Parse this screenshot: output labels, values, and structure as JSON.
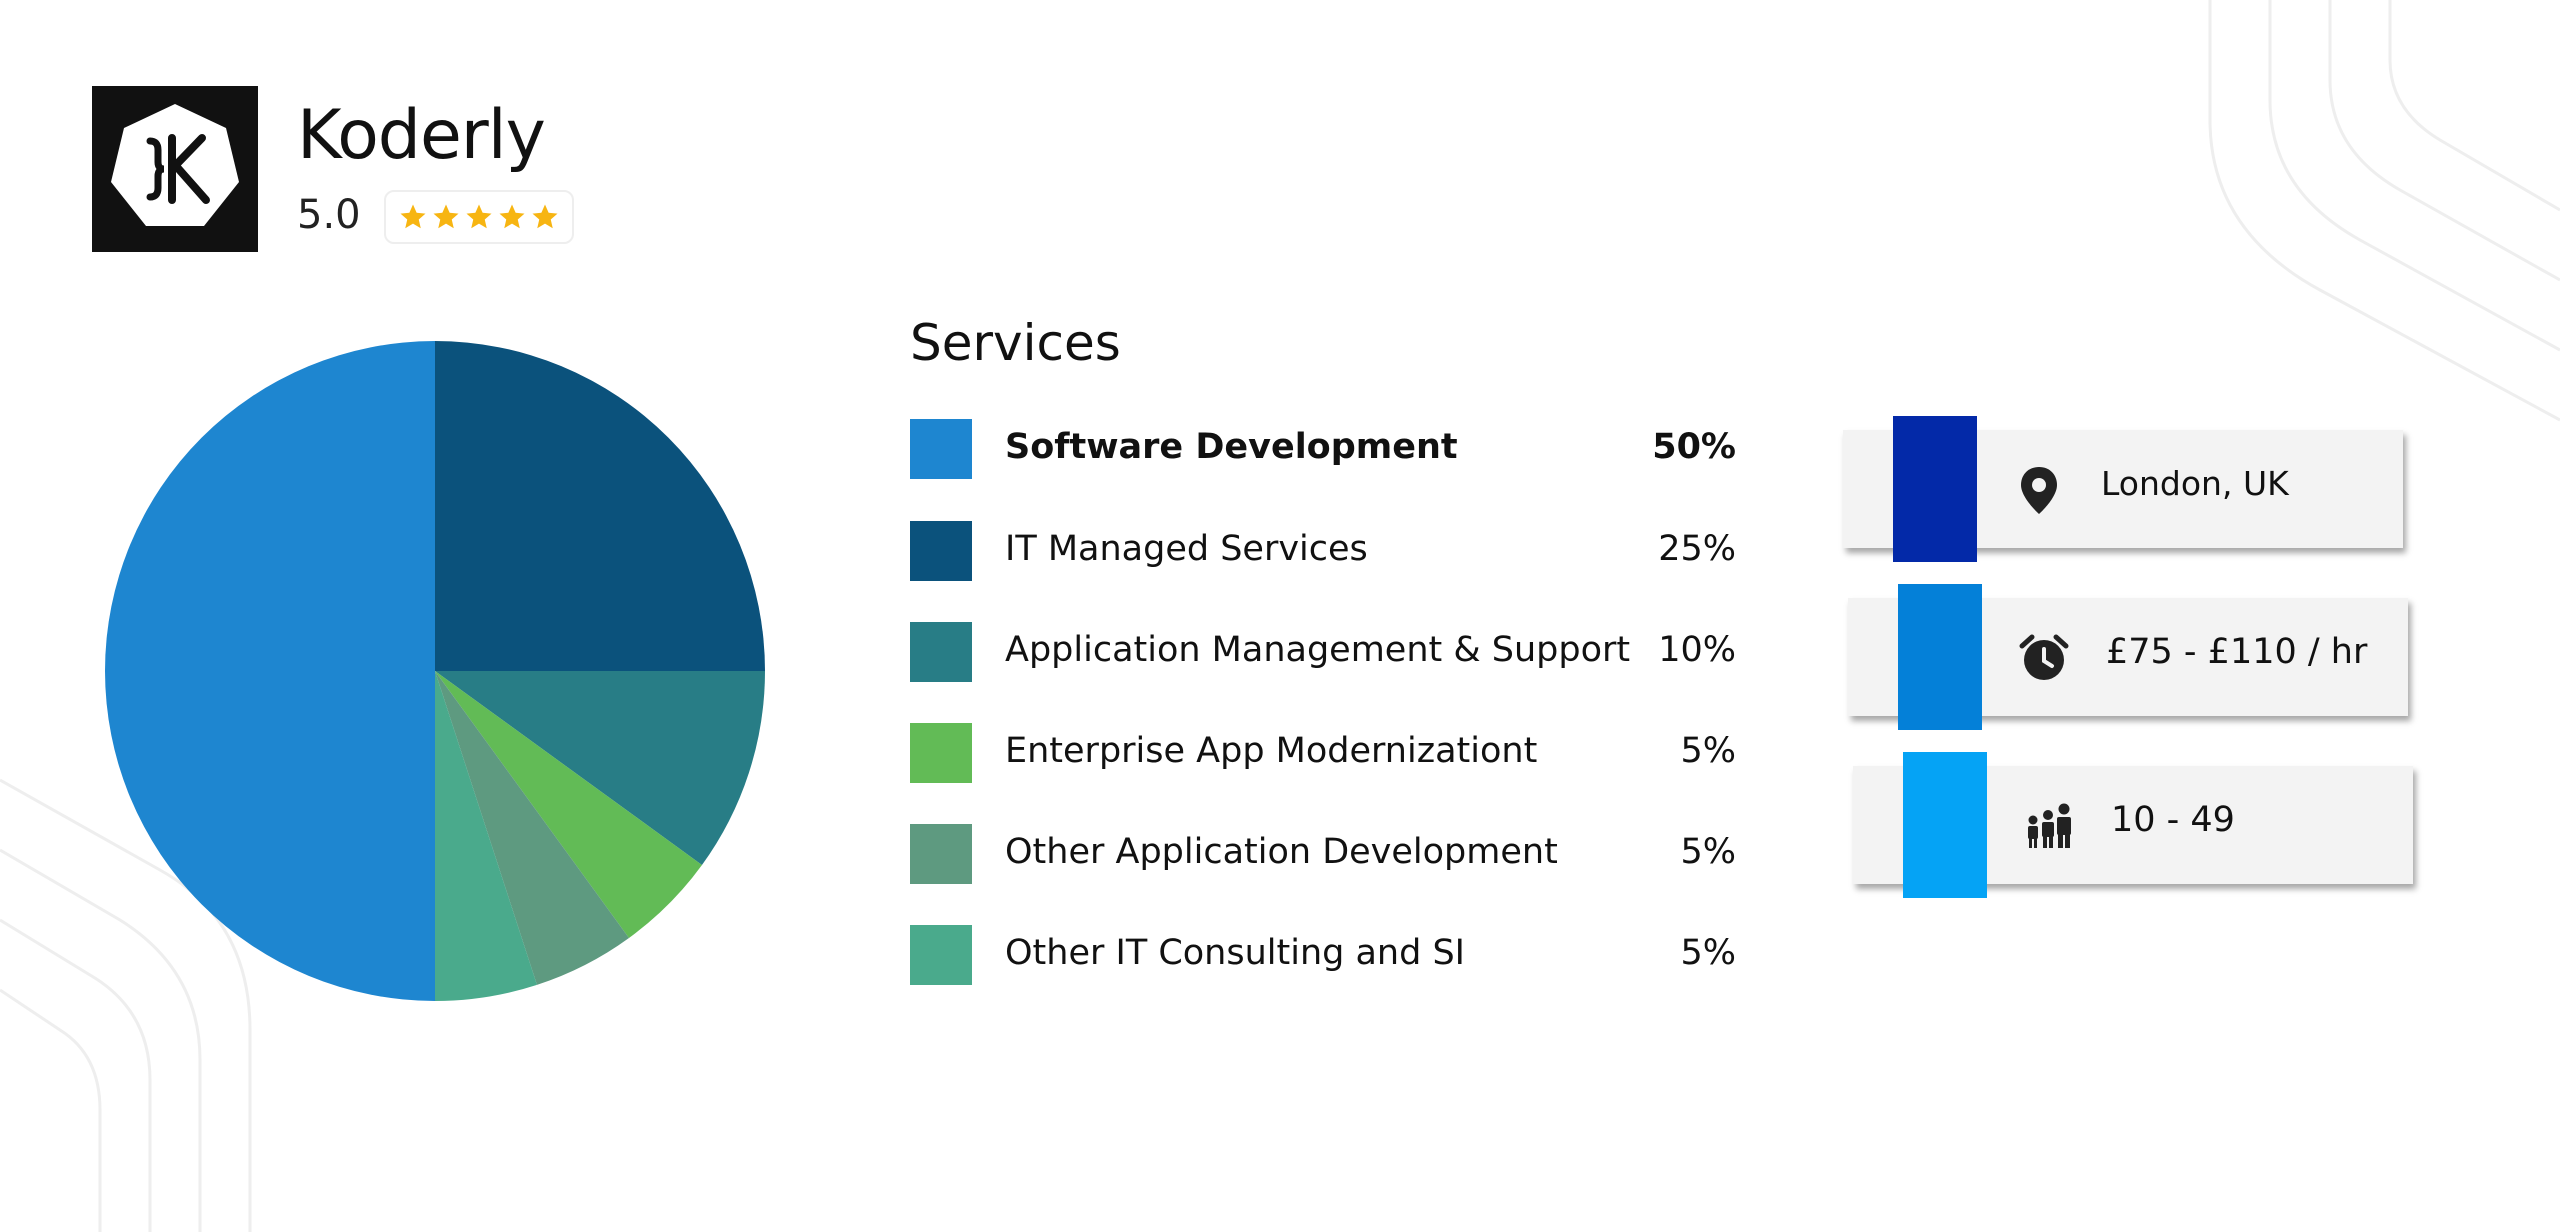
{
  "company": {
    "name": "Koderly",
    "rating": "5.0",
    "stars": 5,
    "logo_icon": "koderly-logo-icon"
  },
  "services": {
    "title": "Services",
    "items": [
      {
        "label": "Software Development",
        "percent": "50%",
        "color": "#1e86d0"
      },
      {
        "label": "IT Managed Services",
        "percent": "25%",
        "color": "#0b527c"
      },
      {
        "label": "Application Management & Support",
        "percent": "10%",
        "color": "#287d86"
      },
      {
        "label": "Enterprise App Modernizationt",
        "percent": "5%",
        "color": "#62bb56"
      },
      {
        "label": "Other Application Development",
        "percent": "5%",
        "color": "#5e9a80"
      },
      {
        "label": "Other IT Consulting and SI",
        "percent": "5%",
        "color": "#4aaa8c"
      }
    ]
  },
  "chart_data": {
    "type": "pie",
    "categories": [
      "Software Development",
      "IT Managed Services",
      "Application Management & Support",
      "Enterprise App Modernizationt",
      "Other Application Development",
      "Other IT Consulting and SI"
    ],
    "values": [
      50,
      25,
      10,
      5,
      5,
      5
    ],
    "colors": [
      "#1e86d0",
      "#0b527c",
      "#287d86",
      "#62bb56",
      "#5e9a80",
      "#4aaa8c"
    ],
    "title": "Services",
    "legend": "right"
  },
  "info": {
    "location": {
      "text": "London, UK",
      "icon": "map-pin-icon",
      "accent": "#0329a8"
    },
    "rate": {
      "text": "£75 - £110 / hr",
      "icon": "alarm-clock-icon",
      "accent": "#0480d8"
    },
    "employees": {
      "text": "10 - 49",
      "icon": "people-icon",
      "accent": "#05a3f5"
    }
  }
}
